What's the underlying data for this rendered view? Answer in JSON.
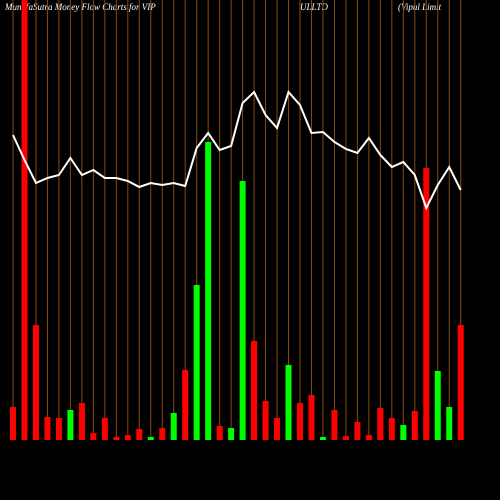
{
  "chart_data": {
    "type": "bar",
    "title": [
      "MunafaSutra  Money Flow  Charts for VIP",
      "ULLTD",
      "(Vipul Limit"
    ],
    "categories": [
      null,
      null,
      null,
      null,
      null,
      null,
      null,
      null,
      null,
      null,
      null,
      null,
      null,
      null,
      null,
      null,
      null,
      null,
      null,
      null,
      null,
      null,
      null,
      null,
      null,
      null,
      null,
      null,
      null,
      null,
      null,
      null,
      null,
      null,
      null,
      null,
      null,
      null,
      null,
      null
    ],
    "ylim": [
      0,
      440
    ],
    "grid_color": "#8b4a10",
    "series": [
      {
        "type": "bar",
        "values": [
          33,
          440,
          115,
          23,
          22,
          30,
          37,
          7,
          22,
          3,
          5,
          11,
          3,
          12,
          27,
          70,
          155,
          298,
          14,
          12,
          259,
          99,
          39,
          22,
          75,
          37,
          45,
          3,
          30,
          4,
          18,
          5,
          32,
          22,
          15,
          29,
          272,
          69,
          33,
          115
        ],
        "colors": [
          "#ff0000",
          "#ff0000",
          "#ff0000",
          "#ff0000",
          "#ff0000",
          "#00ff00",
          "#ff0000",
          "#ff0000",
          "#ff0000",
          "#ff0000",
          "#ff0000",
          "#ff0000",
          "#00ff00",
          "#ff0000",
          "#00ff00",
          "#ff0000",
          "#00ff00",
          "#00ff00",
          "#ff0000",
          "#00ff00",
          "#00ff00",
          "#ff0000",
          "#ff0000",
          "#ff0000",
          "#00ff00",
          "#ff0000",
          "#ff0000",
          "#00ff00",
          "#ff0000",
          "#ff0000",
          "#ff0000",
          "#ff0000",
          "#ff0000",
          "#ff0000",
          "#00ff00",
          "#ff0000",
          "#ff0000",
          "#00ff00",
          "#00ff00",
          "#ff0000"
        ]
      },
      {
        "type": "line",
        "color": "#ffffff",
        "values": [
          305,
          280,
          257,
          262,
          265,
          282,
          265,
          270,
          262,
          262,
          259,
          253,
          257,
          255,
          257,
          254,
          292,
          307,
          290,
          294,
          337,
          348,
          325,
          312,
          348,
          335,
          307,
          308,
          298,
          291,
          287,
          302,
          285,
          273,
          278,
          265,
          232,
          255,
          273,
          250
        ]
      }
    ]
  }
}
